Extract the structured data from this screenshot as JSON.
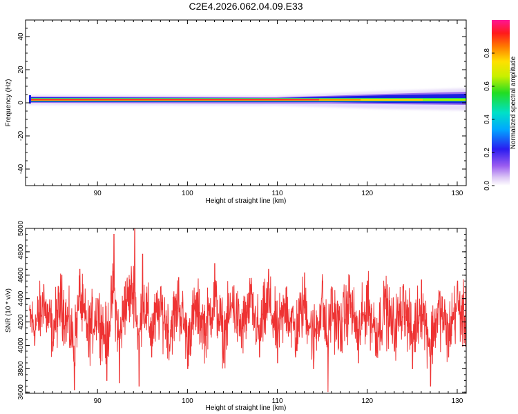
{
  "chart_data": [
    {
      "type": "heatmap",
      "title": "C2E4.2026.062.04.09.E33",
      "xlabel": "Height of straight line (km)",
      "ylabel": "Frequency (Hz)",
      "xlim": [
        82,
        131
      ],
      "ylim": [
        -50,
        50
      ],
      "x_ticks": [
        "90",
        "100",
        "110",
        "120",
        "130"
      ],
      "y_ticks": [
        "40",
        "20",
        "0",
        "-20",
        "-40"
      ],
      "colorbar": {
        "label": "Normalized spectral amplitude",
        "range": [
          0,
          1
        ],
        "ticks": [
          "0.0",
          "0.2",
          "0.4",
          "0.6",
          "0.8"
        ]
      },
      "band": {
        "center_hz": 2,
        "x_start": 82.4,
        "x_end": 131,
        "spread_starts_at_km": 110,
        "max_amplitude": 1.0
      }
    },
    {
      "type": "line",
      "xlabel": "Height of straight line (km)",
      "ylabel": "SNR (10 * v/v)",
      "xlim": [
        82,
        131
      ],
      "ylim": [
        3590,
        5000
      ],
      "x_ticks": [
        "90",
        "100",
        "110",
        "120",
        "130"
      ],
      "y_ticks": [
        "3600",
        "3800",
        "4000",
        "4200",
        "4400",
        "4600",
        "4800",
        "5000"
      ],
      "series": [
        {
          "color": "#ee3333",
          "baseline": 4230,
          "noise_amplitude": 190,
          "points": [
            [
              82.4,
              4300
            ],
            [
              83.0,
              4000
            ],
            [
              84.0,
              4520
            ],
            [
              85.0,
              3950
            ],
            [
              86.0,
              4600
            ],
            [
              87.4,
              3620
            ],
            [
              88.0,
              4650
            ],
            [
              89.0,
              3900
            ],
            [
              90.0,
              4400
            ],
            [
              91.0,
              3700
            ],
            [
              91.8,
              4950
            ],
            [
              92.4,
              3680
            ],
            [
              93.0,
              4500
            ],
            [
              94.1,
              5000
            ],
            [
              94.6,
              3650
            ],
            [
              95.0,
              4780
            ],
            [
              96.0,
              3900
            ],
            [
              97.0,
              4500
            ],
            [
              98.0,
              3950
            ],
            [
              99.0,
              4580
            ],
            [
              100.0,
              3800
            ],
            [
              101.0,
              4450
            ],
            [
              102.0,
              4000
            ],
            [
              103.0,
              4700
            ],
            [
              104.0,
              3850
            ],
            [
              105.0,
              4500
            ],
            [
              106.0,
              3980
            ],
            [
              107.0,
              4520
            ],
            [
              108.0,
              3900
            ],
            [
              109.0,
              4650
            ],
            [
              110.0,
              3850
            ],
            [
              111.0,
              4500
            ],
            [
              112.0,
              3900
            ],
            [
              113.0,
              4620
            ],
            [
              114.0,
              3800
            ],
            [
              115.0,
              4550
            ],
            [
              115.6,
              3600
            ],
            [
              116.0,
              4500
            ],
            [
              117.0,
              3950
            ],
            [
              118.0,
              4600
            ],
            [
              119.0,
              3850
            ],
            [
              120.0,
              4550
            ],
            [
              121.0,
              3900
            ],
            [
              122.0,
              4480
            ],
            [
              123.0,
              3950
            ],
            [
              124.0,
              4520
            ],
            [
              125.0,
              3800
            ],
            [
              126.0,
              4560
            ],
            [
              127.0,
              3650
            ],
            [
              128.0,
              4450
            ],
            [
              129.0,
              3900
            ],
            [
              130.0,
              4550
            ],
            [
              131.0,
              4100
            ]
          ]
        }
      ]
    }
  ]
}
